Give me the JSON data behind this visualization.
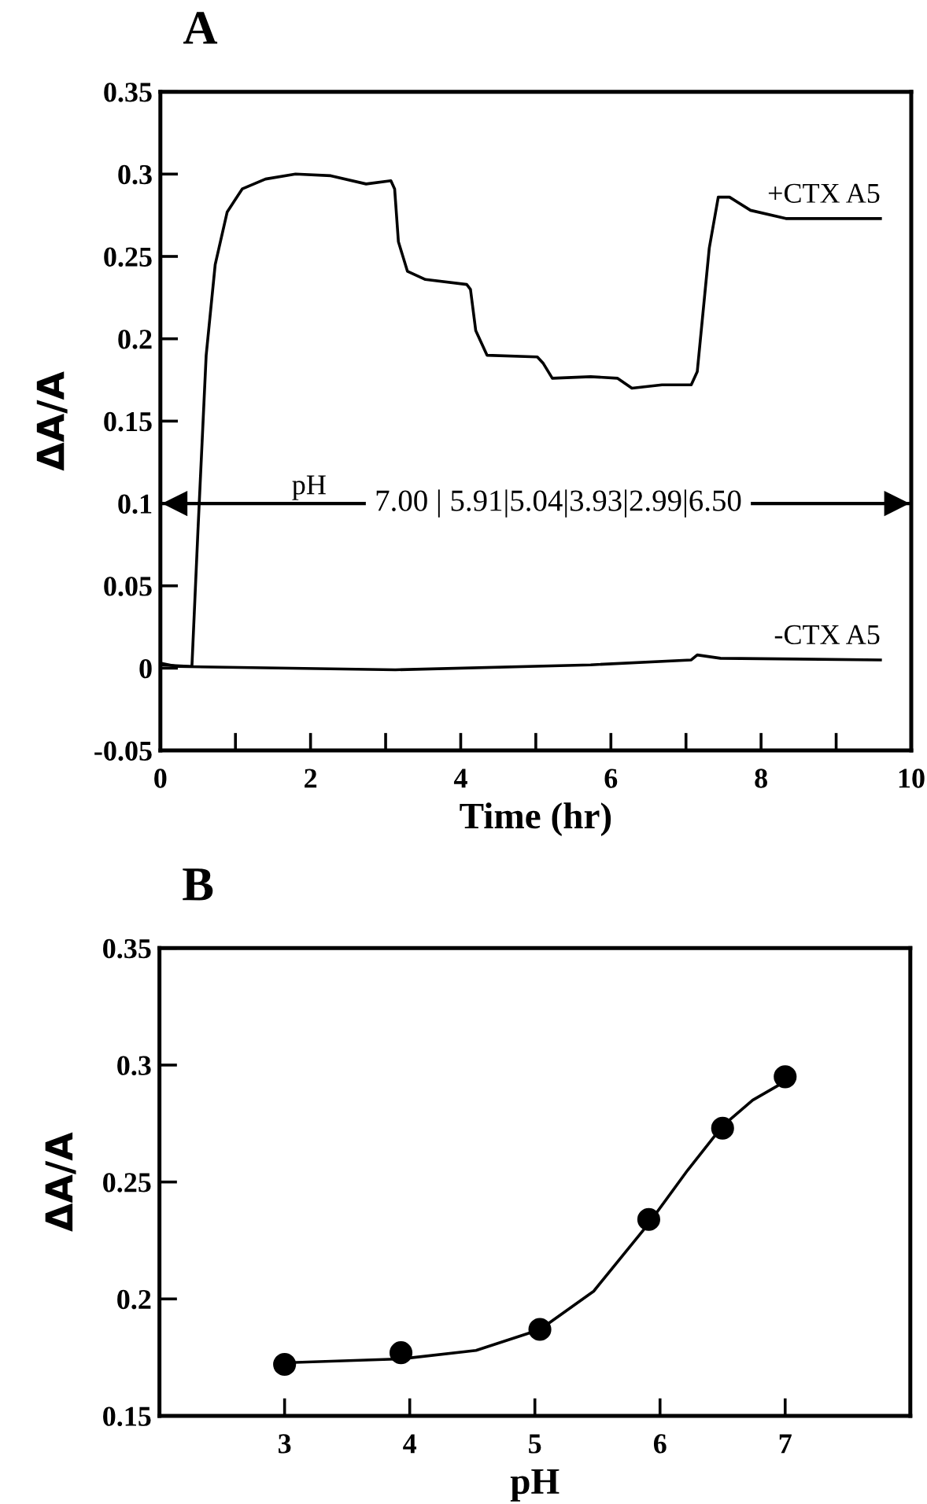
{
  "chart_data": [
    {
      "type": "line",
      "title": "A",
      "xlabel": "Time (hr)",
      "ylabel": "ΔA/A",
      "xlim": [
        0,
        10
      ],
      "xticks": [
        0,
        {
          "value": 1,
          "label": null
        },
        2,
        {
          "value": 3,
          "label": null
        },
        4,
        {
          "value": 5,
          "label": null
        },
        6,
        {
          "value": 7,
          "label": null
        },
        8,
        {
          "value": 9,
          "label": null
        },
        10
      ],
      "ylim": [
        -0.05,
        0.35
      ],
      "yticks": [
        {
          "value": -0.05,
          "label": "-0.05"
        },
        0,
        0.05,
        0.1,
        0.15,
        0.2,
        0.25,
        0.3,
        0.35
      ],
      "grid": false,
      "legend": false,
      "marker": "none",
      "line_style": "solid",
      "series": [
        {
          "name": "+CTX A5",
          "color": "#000000",
          "x": [
            0,
            0.42,
            0.5,
            0.61,
            0.73,
            0.89,
            1.09,
            1.4,
            1.8,
            2.27,
            2.74,
            3.07,
            3.12,
            3.17,
            3.29,
            3.53,
            4.08,
            4.13,
            4.2,
            4.35,
            5.02,
            5.1,
            5.22,
            5.73,
            6.09,
            6.28,
            6.68,
            7.07,
            7.15,
            7.31,
            7.43,
            7.58,
            7.86,
            8.33,
            9.59
          ],
          "values": [
            0.002,
            0.001,
            0.083,
            0.19,
            0.245,
            0.277,
            0.291,
            0.297,
            0.3,
            0.299,
            0.294,
            0.296,
            0.291,
            0.259,
            0.241,
            0.236,
            0.233,
            0.23,
            0.205,
            0.19,
            0.189,
            0.185,
            0.176,
            0.177,
            0.176,
            0.17,
            0.172,
            0.172,
            0.18,
            0.255,
            0.286,
            0.286,
            0.278,
            0.273,
            0.273
          ]
        },
        {
          "name": "-CTX A5",
          "color": "#000000",
          "x": [
            0,
            0.22,
            3.13,
            5.73,
            7.07,
            7.15,
            7.46,
            9.59
          ],
          "values": [
            0.003,
            0.001,
            -0.001,
            0.002,
            0.005,
            0.008,
            0.006,
            0.005
          ]
        }
      ],
      "ref_lines": [
        {
          "axis": "y",
          "value": 0.1,
          "label": "pH",
          "color": "#000000",
          "line_style": "solid"
        }
      ],
      "annotations": [
        "7.00 | 5.91|5.04|3.93|2.99|6.50"
      ]
    },
    {
      "type": "scatter",
      "title": "B",
      "xlabel": "pH",
      "ylabel": "ΔA/A",
      "xlim": [
        2,
        8
      ],
      "xticks": [
        3,
        4,
        5,
        6,
        7
      ],
      "ylim": [
        0.15,
        0.35
      ],
      "yticks": [
        0.15,
        0.2,
        0.25,
        0.3,
        0.35
      ],
      "grid": false,
      "legend": false,
      "series": [
        {
          "type": "scatter",
          "marker": "circle",
          "color": "#000000",
          "x": [
            3.0,
            3.93,
            5.04,
            5.91,
            6.5,
            7.0
          ],
          "values": [
            0.172,
            0.177,
            0.187,
            0.234,
            0.273,
            0.295
          ]
        },
        {
          "type": "line",
          "marker": "none",
          "line_style": "solid",
          "color": "#000000",
          "x": [
            3.0,
            3.94,
            4.53,
            5.04,
            5.47,
            5.91,
            6.22,
            6.5,
            6.74,
            7.0
          ],
          "values": [
            0.1727,
            0.1744,
            0.178,
            0.1869,
            0.2033,
            0.2323,
            0.255,
            0.274,
            0.285,
            0.293
          ]
        }
      ]
    }
  ]
}
